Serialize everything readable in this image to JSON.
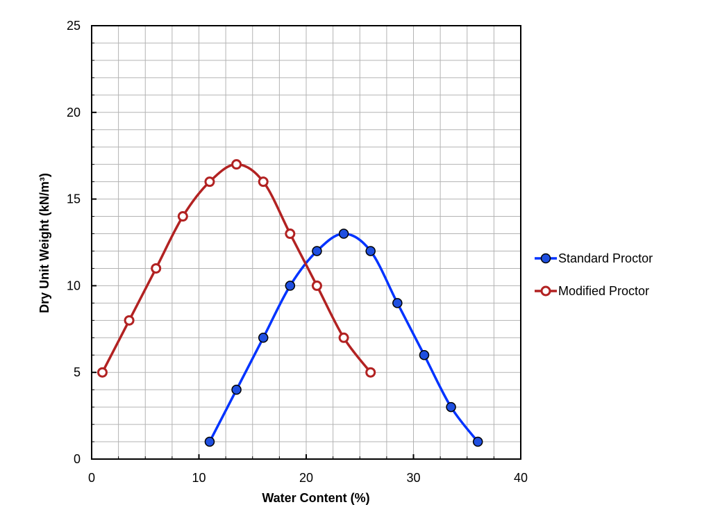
{
  "chart_data": {
    "type": "line",
    "title": "",
    "xlabel": "Water Content (%)",
    "ylabel": "Dry Unit Weight (kN/m³)",
    "xlim": [
      0,
      40
    ],
    "ylim": [
      0,
      25
    ],
    "x_major_ticks": [
      0,
      10,
      20,
      30,
      40
    ],
    "y_major_ticks": [
      0,
      5,
      10,
      15,
      20,
      25
    ],
    "x_tick_labels": [
      "0",
      "10",
      "20",
      "30",
      "40"
    ],
    "y_tick_labels": [
      "0",
      "5",
      "10",
      "15",
      "20",
      "25"
    ],
    "x_minor_step": 2.5,
    "y_minor_step": 1,
    "grid": true,
    "legend_position": "right",
    "series": [
      {
        "name": "Standard Proctor",
        "color": "#0033ff",
        "marker": "filled-circle",
        "marker_fill": "#1f4fe0",
        "x": [
          11,
          13.5,
          16,
          18.5,
          21,
          23.5,
          26,
          28.5,
          31,
          33.5,
          36
        ],
        "y": [
          1,
          4,
          7,
          10,
          12,
          13,
          12,
          9,
          6,
          3,
          1
        ]
      },
      {
        "name": "Modified Proctor",
        "color": "#b22222",
        "marker": "hollow-circle",
        "marker_fill": "#ffffff",
        "x": [
          1,
          3.5,
          6,
          8.5,
          11,
          13.5,
          16,
          18.5,
          21,
          23.5,
          26
        ],
        "y": [
          5,
          8,
          11,
          14,
          16,
          17,
          16,
          13,
          10,
          7,
          5
        ]
      }
    ]
  }
}
